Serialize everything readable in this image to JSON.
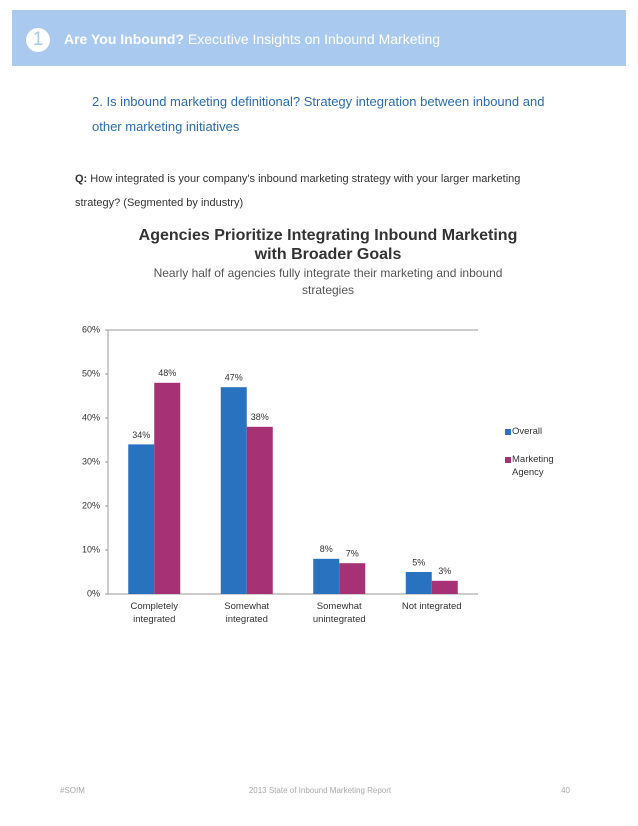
{
  "header": {
    "number": "1",
    "title_bold": "Are You Inbound?",
    "title_rest": "Executive Insights on Inbound Marketing"
  },
  "section": {
    "heading": "2. Is inbound marketing definitional? Strategy integration between inbound and other marketing initiatives"
  },
  "question": {
    "label": "Q:",
    "text": "How integrated is your company's inbound marketing strategy with your larger marketing strategy? (Segmented by industry)"
  },
  "chart_data": {
    "type": "bar",
    "title": "Agencies Prioritize Integrating Inbound Marketing with Broader Goals",
    "subtitle": "Nearly half of agencies fully integrate their marketing and inbound strategies",
    "categories": [
      "Completely integrated",
      "Somewhat integrated",
      "Somewhat unintegrated",
      "Not integrated"
    ],
    "series": [
      {
        "name": "Overall",
        "color": "#2872c0",
        "values": [
          34,
          47,
          8,
          5
        ],
        "value_labels": [
          "34%",
          "47%",
          "8%",
          "5%"
        ]
      },
      {
        "name": "Marketing Agency",
        "color": "#a73175",
        "values": [
          48,
          38,
          7,
          3
        ],
        "value_labels": [
          "48%",
          "38%",
          "7%",
          "3%"
        ]
      }
    ],
    "ylim": [
      0,
      60
    ],
    "yticks": [
      {
        "value": 0,
        "label": "0%"
      },
      {
        "value": 10,
        "label": "10%"
      },
      {
        "value": 20,
        "label": "20%"
      },
      {
        "value": 30,
        "label": "30%"
      },
      {
        "value": 40,
        "label": "40%"
      },
      {
        "value": 50,
        "label": "50%"
      },
      {
        "value": 60,
        "label": "60%"
      }
    ],
    "legend": "right"
  },
  "footer": {
    "left": "#SOIM",
    "center": "2013 State of Inbound Marketing Report",
    "page": "40"
  }
}
